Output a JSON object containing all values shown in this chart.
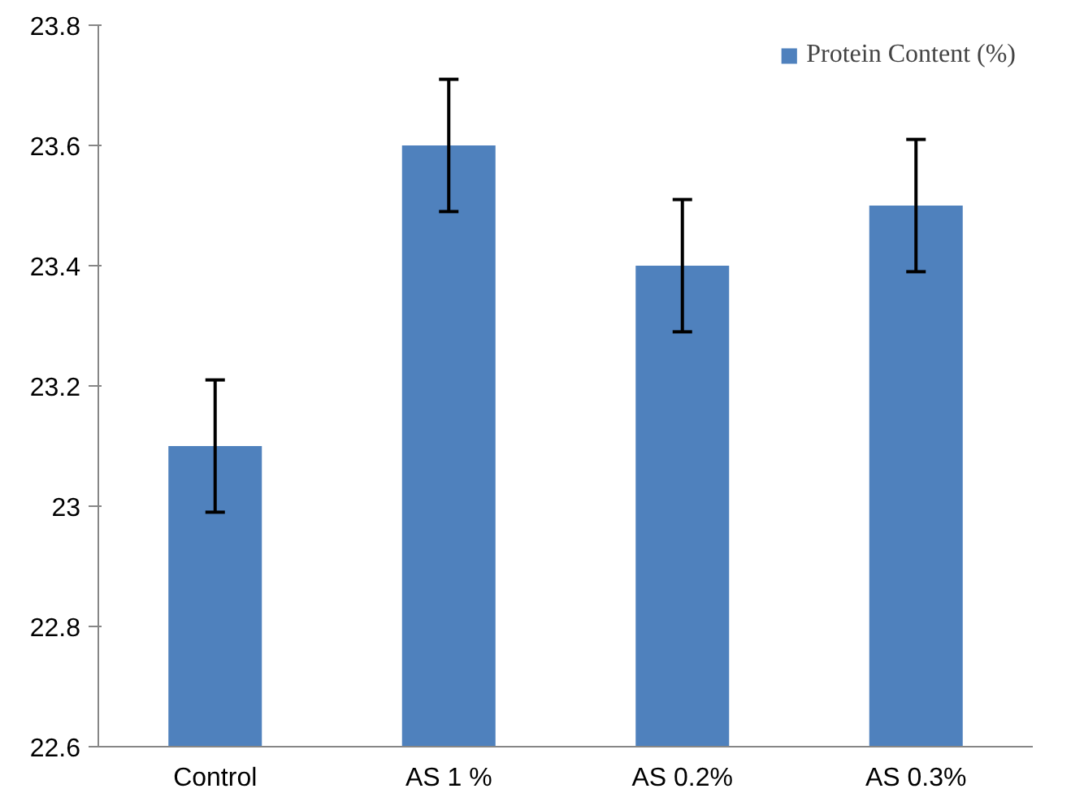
{
  "chart_data": {
    "type": "bar",
    "categories": [
      "Control",
      "AS 1 %",
      "AS 0.2%",
      "AS 0.3%"
    ],
    "series": [
      {
        "name": "Protein Content (%)",
        "color": "#4f81bd",
        "values": [
          23.1,
          23.6,
          23.4,
          23.5
        ],
        "errors": [
          0.11,
          0.11,
          0.11,
          0.11
        ]
      }
    ],
    "ylim": [
      22.6,
      23.8
    ],
    "yticks": [
      22.6,
      22.8,
      23,
      23.2,
      23.4,
      23.6,
      23.8
    ],
    "grid": false,
    "legend": "top right"
  }
}
